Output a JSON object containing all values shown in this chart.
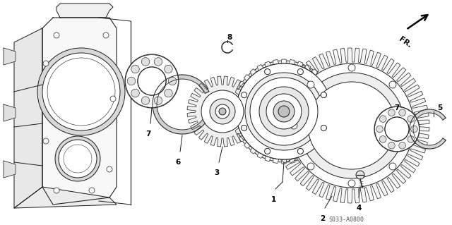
{
  "bg_color": "#ffffff",
  "line_color": "#1a1a1a",
  "part_code_text": "S033-A0800",
  "fr_text": "FR.",
  "linewidth": 0.7,
  "figsize": [
    6.4,
    3.19
  ],
  "dpi": 100
}
